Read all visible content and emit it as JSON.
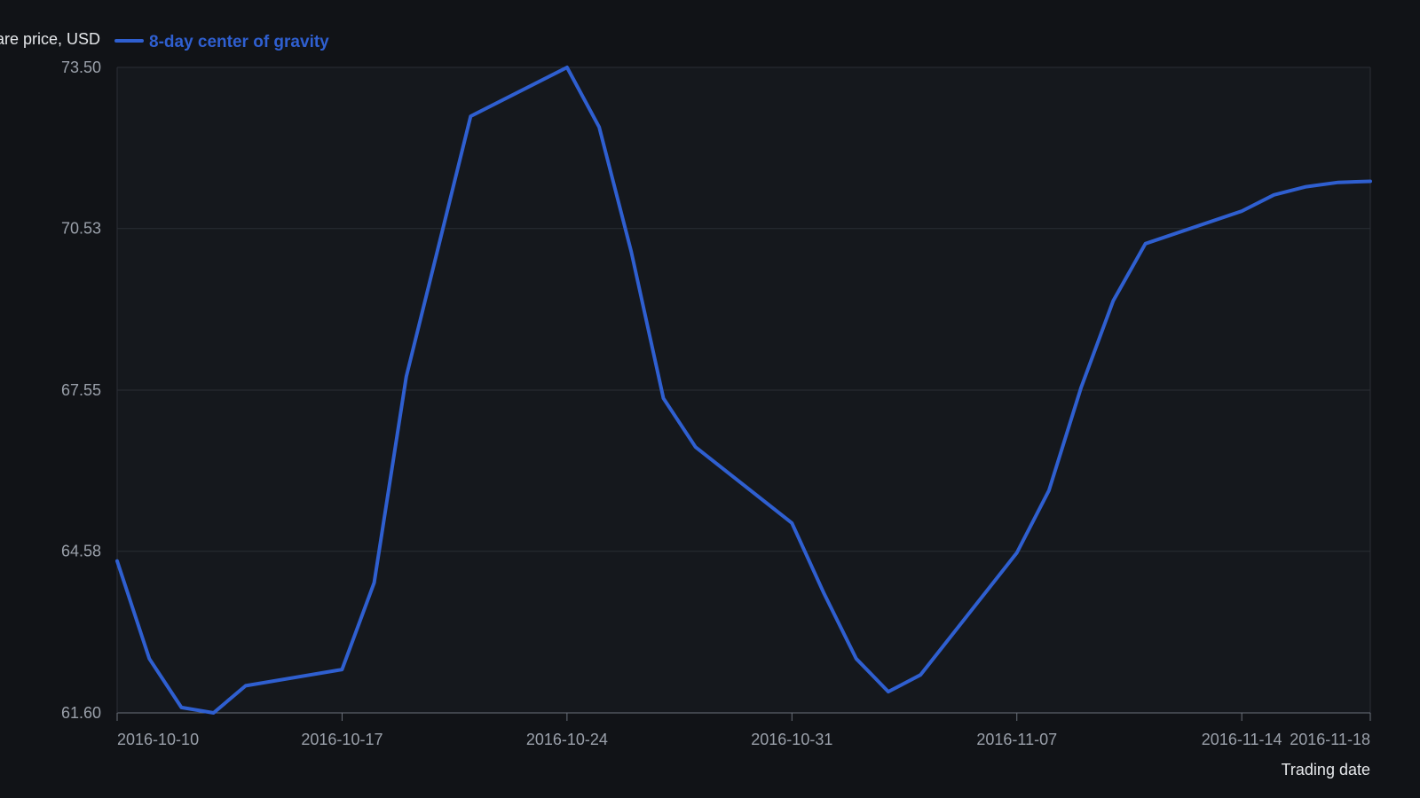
{
  "colors": {
    "background": "#111317",
    "plot_background": "#15181d",
    "grid": "#2a2e35",
    "axis": "#6b717b",
    "series": "#2f5fd0"
  },
  "chart_data": {
    "type": "line",
    "title": "",
    "ylabel": "Share price, USD",
    "xlabel": "Trading date",
    "ylim": [
      61.6,
      73.5
    ],
    "yticks": [
      "73.50",
      "70.53",
      "67.55",
      "64.58",
      "61.60"
    ],
    "xticks": [
      "2016-10-10",
      "2016-10-17",
      "2016-10-24",
      "2016-10-31",
      "2016-11-07",
      "2016-11-14",
      "2016-11-18"
    ],
    "xlim": [
      "2016-10-10",
      "2016-11-18"
    ],
    "grid": true,
    "legend_position": "top-left",
    "series": [
      {
        "name": "8-day center of gravity",
        "x": [
          "2016-10-10",
          "2016-10-11",
          "2016-10-12",
          "2016-10-13",
          "2016-10-14",
          "2016-10-17",
          "2016-10-18",
          "2016-10-19",
          "2016-10-20",
          "2016-10-21",
          "2016-10-24",
          "2016-10-25",
          "2016-10-26",
          "2016-10-27",
          "2016-10-28",
          "2016-10-31",
          "2016-11-01",
          "2016-11-02",
          "2016-11-03",
          "2016-11-04",
          "2016-11-07",
          "2016-11-08",
          "2016-11-09",
          "2016-11-10",
          "2016-11-11",
          "2016-11-14",
          "2016-11-15",
          "2016-11-16",
          "2016-11-17",
          "2016-11-18"
        ],
        "values": [
          64.4,
          62.6,
          61.7,
          61.6,
          62.1,
          62.4,
          64.0,
          67.8,
          70.2,
          72.6,
          73.5,
          72.4,
          70.1,
          67.4,
          66.5,
          65.1,
          63.8,
          62.6,
          61.99,
          62.3,
          64.55,
          65.7,
          67.6,
          69.2,
          70.25,
          70.85,
          71.15,
          71.3,
          71.38,
          71.4
        ]
      }
    ]
  }
}
